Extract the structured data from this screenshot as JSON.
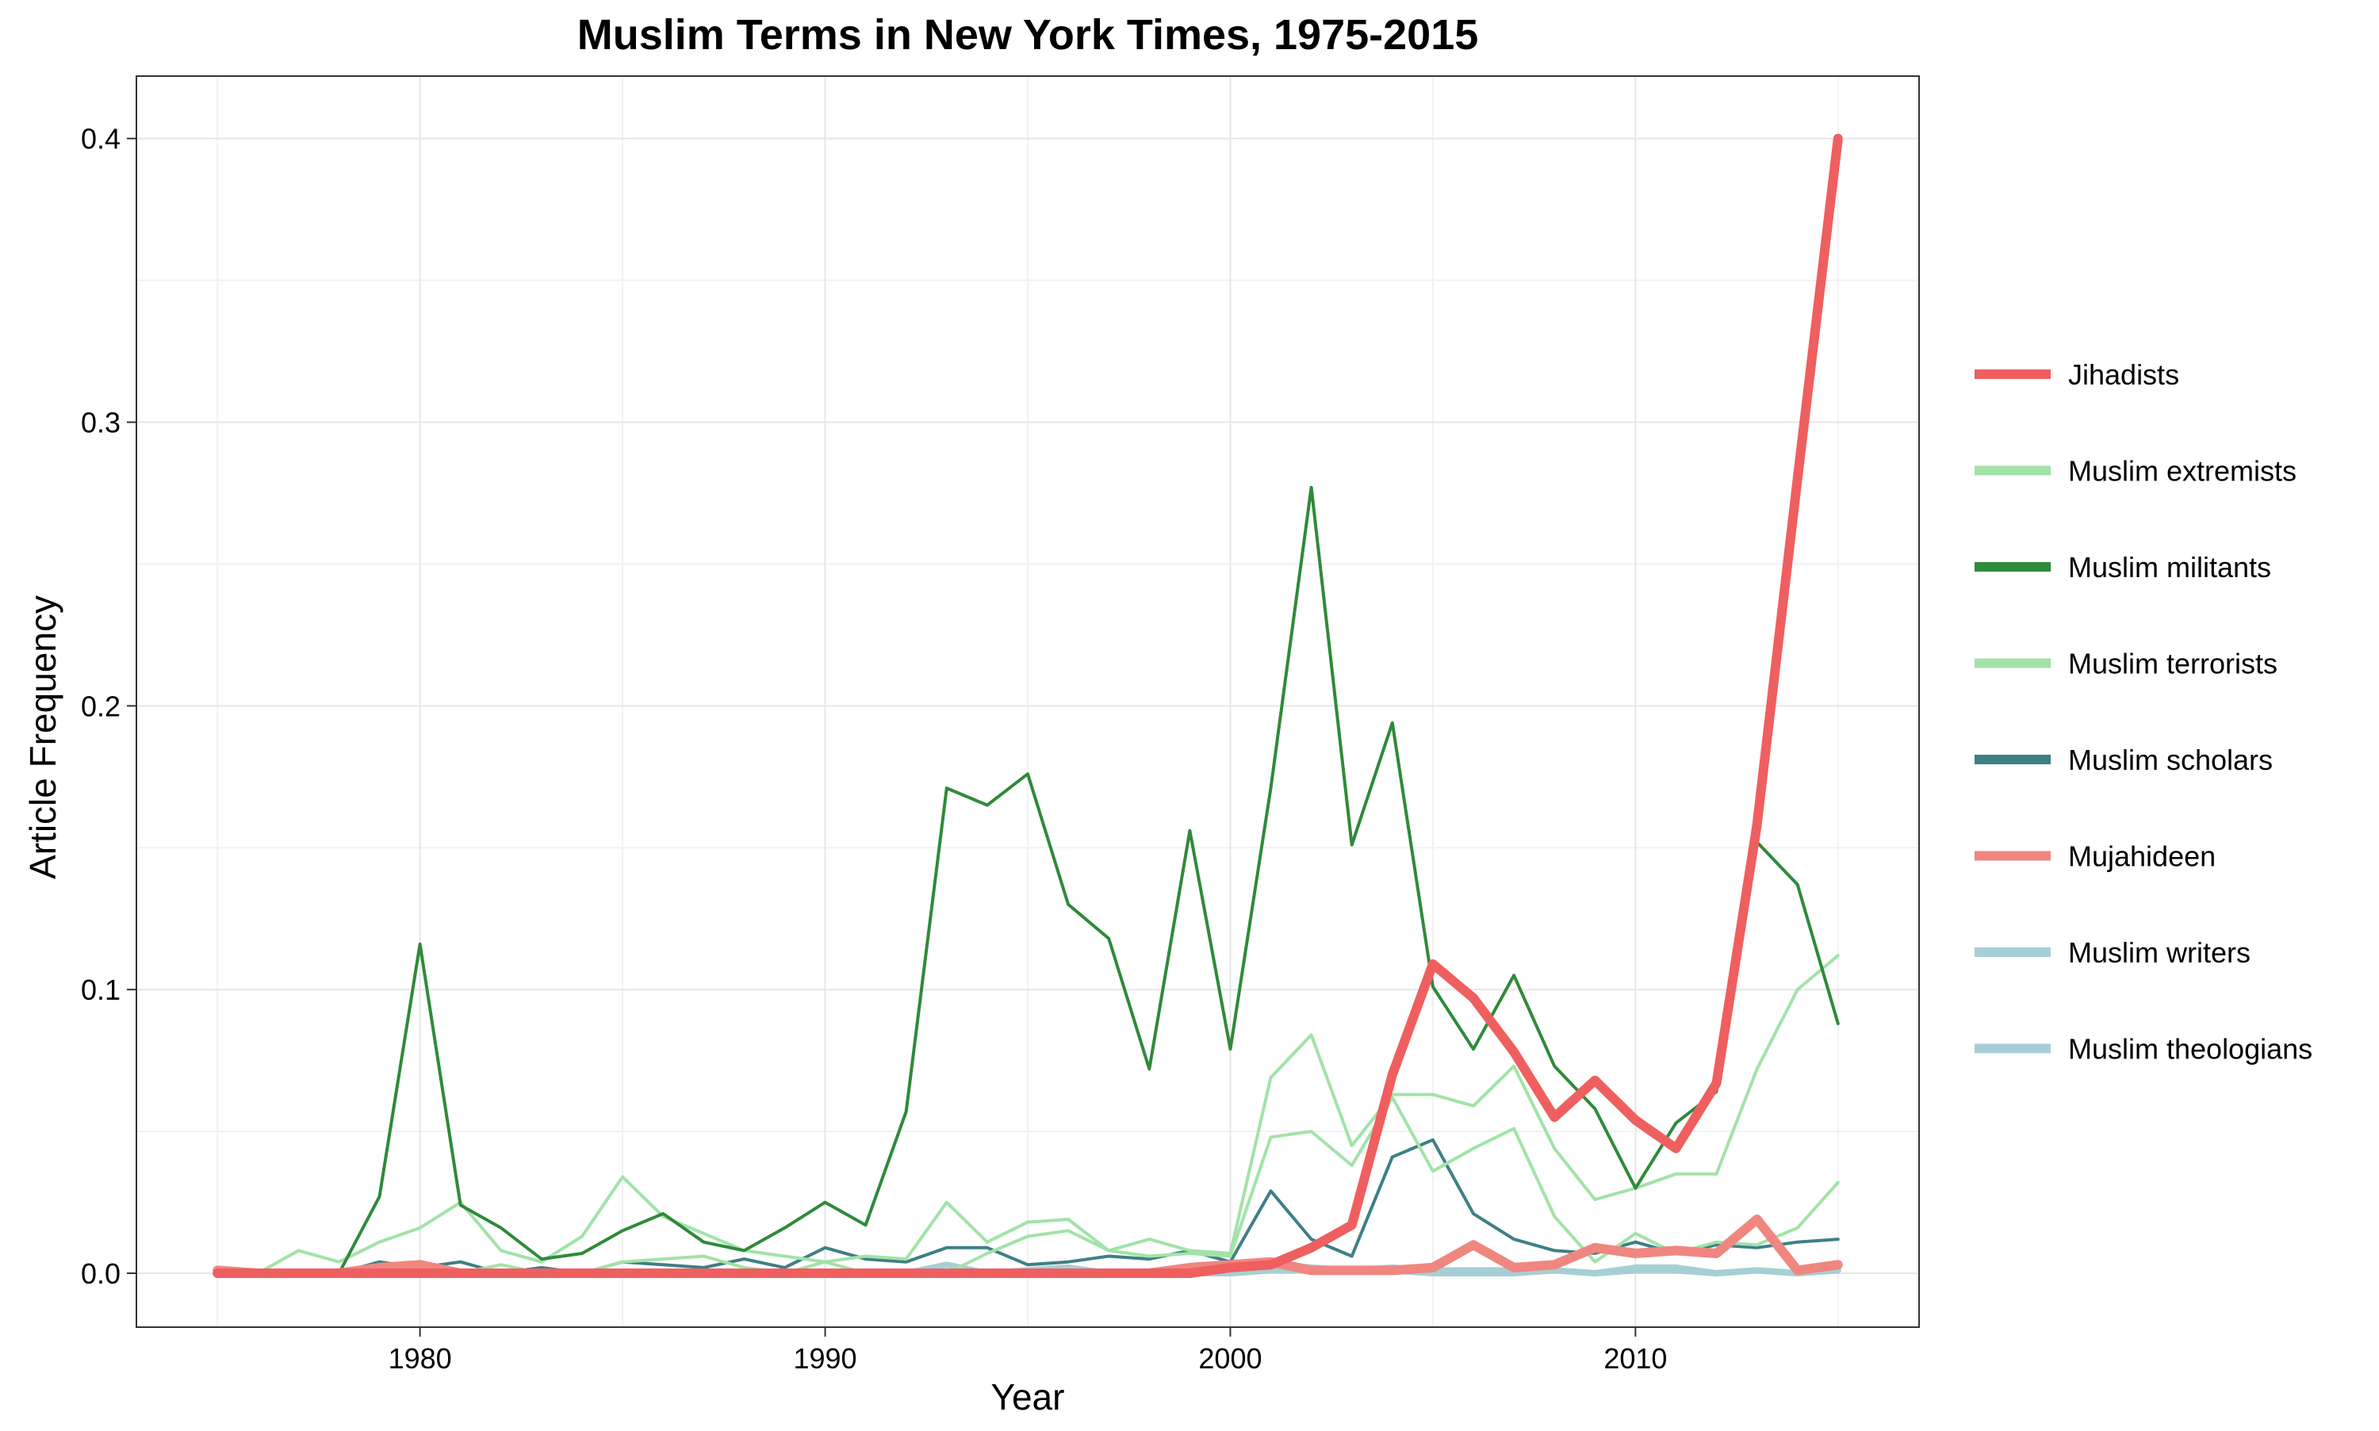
{
  "chart_data": {
    "type": "line",
    "title": "Muslim Terms in New York Times, 1975-2015",
    "xlabel": "Year",
    "ylabel": "Article Frequency",
    "x": [
      1975,
      1976,
      1977,
      1978,
      1979,
      1980,
      1981,
      1982,
      1983,
      1984,
      1985,
      1986,
      1987,
      1988,
      1989,
      1990,
      1991,
      1992,
      1993,
      1994,
      1995,
      1996,
      1997,
      1998,
      1999,
      2000,
      2001,
      2002,
      2003,
      2004,
      2005,
      2006,
      2007,
      2008,
      2009,
      2010,
      2011,
      2012,
      2013,
      2014,
      2015
    ],
    "xlim": [
      1973,
      2017
    ],
    "ylim": [
      -0.019,
      0.422
    ],
    "xticks": [
      1980,
      1990,
      2000,
      2010
    ],
    "yticks": [
      0.0,
      0.1,
      0.2,
      0.3,
      0.4
    ],
    "ytick_labels": [
      "0.0",
      "0.1",
      "0.2",
      "0.3",
      "0.4"
    ],
    "grid": true,
    "legend_position": "right",
    "series": [
      {
        "name": "Muslim theologians",
        "color": "#a6cfd5",
        "values": [
          0,
          0,
          0,
          0,
          0,
          0,
          0,
          0,
          0,
          0,
          0,
          0,
          0,
          0,
          0,
          0,
          0,
          0,
          0,
          0,
          0,
          0,
          0,
          0,
          0,
          0,
          0.001,
          0.001,
          0.001,
          0.001,
          0,
          0,
          0,
          0.001,
          0,
          0.001,
          0.001,
          0,
          0.001,
          0,
          0.001
        ]
      },
      {
        "name": "Muslim writers",
        "color": "#a6cfd5",
        "values": [
          0,
          0,
          0,
          0,
          0,
          0,
          0,
          0,
          0,
          0,
          0,
          0,
          0,
          0,
          0,
          0,
          0,
          0,
          0.003,
          0,
          0.001,
          0.002,
          0,
          0,
          0.001,
          0,
          0.003,
          0.002,
          0.001,
          0.002,
          0.001,
          0.001,
          0.001,
          0.001,
          0,
          0.002,
          0.002,
          0,
          0.001,
          0,
          0.001
        ]
      },
      {
        "name": "Muslim scholars",
        "color": "#3f7f86",
        "values": [
          0,
          0,
          0,
          0,
          0.004,
          0.002,
          0.004,
          0,
          0.002,
          0,
          0.004,
          0.003,
          0.002,
          0.005,
          0.002,
          0.009,
          0.005,
          0.004,
          0.009,
          0.009,
          0.003,
          0.004,
          0.006,
          0.005,
          0.008,
          0.004,
          0.029,
          0.012,
          0.006,
          0.041,
          0.047,
          0.021,
          0.012,
          0.008,
          0.007,
          0.011,
          0.007,
          0.01,
          0.009,
          0.011,
          0.012
        ]
      },
      {
        "name": "Muslim terrorists",
        "color": "#a1e3a8",
        "values": [
          0,
          0,
          0,
          0,
          0.002,
          0,
          0,
          0.003,
          0,
          0,
          0.004,
          0.005,
          0.006,
          0.002,
          0,
          0.004,
          0,
          0,
          0,
          0.007,
          0.013,
          0.015,
          0.008,
          0.006,
          0.007,
          0.006,
          0.048,
          0.05,
          0.038,
          0.062,
          0.036,
          0.044,
          0.051,
          0.02,
          0.004,
          0.014,
          0.007,
          0.011,
          0.01,
          0.016,
          0.032
        ]
      },
      {
        "name": "Muslim extremists",
        "color": "#a1e3a8",
        "values": [
          0,
          0,
          0.008,
          0.004,
          0.011,
          0.016,
          0.025,
          0.008,
          0.004,
          0.013,
          0.034,
          0.02,
          0.014,
          0.008,
          0.006,
          0.004,
          0.006,
          0.005,
          0.025,
          0.011,
          0.018,
          0.019,
          0.008,
          0.012,
          0.008,
          0.007,
          0.069,
          0.084,
          0.045,
          0.063,
          0.063,
          0.059,
          0.073,
          0.044,
          0.026,
          0.03,
          0.035,
          0.035,
          0.072,
          0.1,
          0.112
        ]
      },
      {
        "name": "Muslim militants",
        "color": "#2f8a3a",
        "values": [
          0,
          0,
          0,
          0,
          0.027,
          0.116,
          0.024,
          0.016,
          0.005,
          0.007,
          0.015,
          0.021,
          0.011,
          0.008,
          0.016,
          0.025,
          0.017,
          0.057,
          0.171,
          0.165,
          0.176,
          0.13,
          0.118,
          0.072,
          0.156,
          0.079,
          0.171,
          0.277,
          0.151,
          0.194,
          0.101,
          0.079,
          0.105,
          0.073,
          0.058,
          0.03,
          0.053,
          0.064,
          0.152,
          0.137,
          0.088
        ]
      },
      {
        "name": "Mujahideen",
        "color": "#f08680",
        "values": [
          0.001,
          0,
          0,
          0,
          0.002,
          0.003,
          0,
          0,
          0,
          0,
          0,
          0,
          0,
          0,
          0,
          0,
          0,
          0,
          0,
          0,
          0,
          0,
          0,
          0,
          0.002,
          0.003,
          0.004,
          0.001,
          0.001,
          0.001,
          0.002,
          0.01,
          0.002,
          0.003,
          0.009,
          0.007,
          0.008,
          0.007,
          0.019,
          0.001,
          0.003
        ]
      },
      {
        "name": "Jihadists",
        "color": "#ef5f5f",
        "values": [
          0,
          0,
          0,
          0,
          0,
          0,
          0,
          0,
          0,
          0,
          0,
          0,
          0,
          0,
          0,
          0,
          0,
          0,
          0,
          0,
          0,
          0,
          0,
          0,
          0,
          0.002,
          0.003,
          0.009,
          0.017,
          0.07,
          0.109,
          0.097,
          0.078,
          0.055,
          0.068,
          0.054,
          0.044,
          0.067,
          0.158,
          0.28,
          0.4
        ]
      }
    ],
    "legend_entries": [
      {
        "name": "Jihadists",
        "color": "#ef5f5f"
      },
      {
        "name": "Muslim extremists",
        "color": "#a1e3a8"
      },
      {
        "name": "Muslim militants",
        "color": "#2f8a3a"
      },
      {
        "name": "Muslim terrorists",
        "color": "#a1e3a8"
      },
      {
        "name": "Muslim scholars",
        "color": "#3f7f86"
      },
      {
        "name": "Mujahideen",
        "color": "#f08680"
      },
      {
        "name": "Muslim writers",
        "color": "#a6cfd5"
      },
      {
        "name": "Muslim theologians",
        "color": "#a6cfd5"
      }
    ]
  }
}
